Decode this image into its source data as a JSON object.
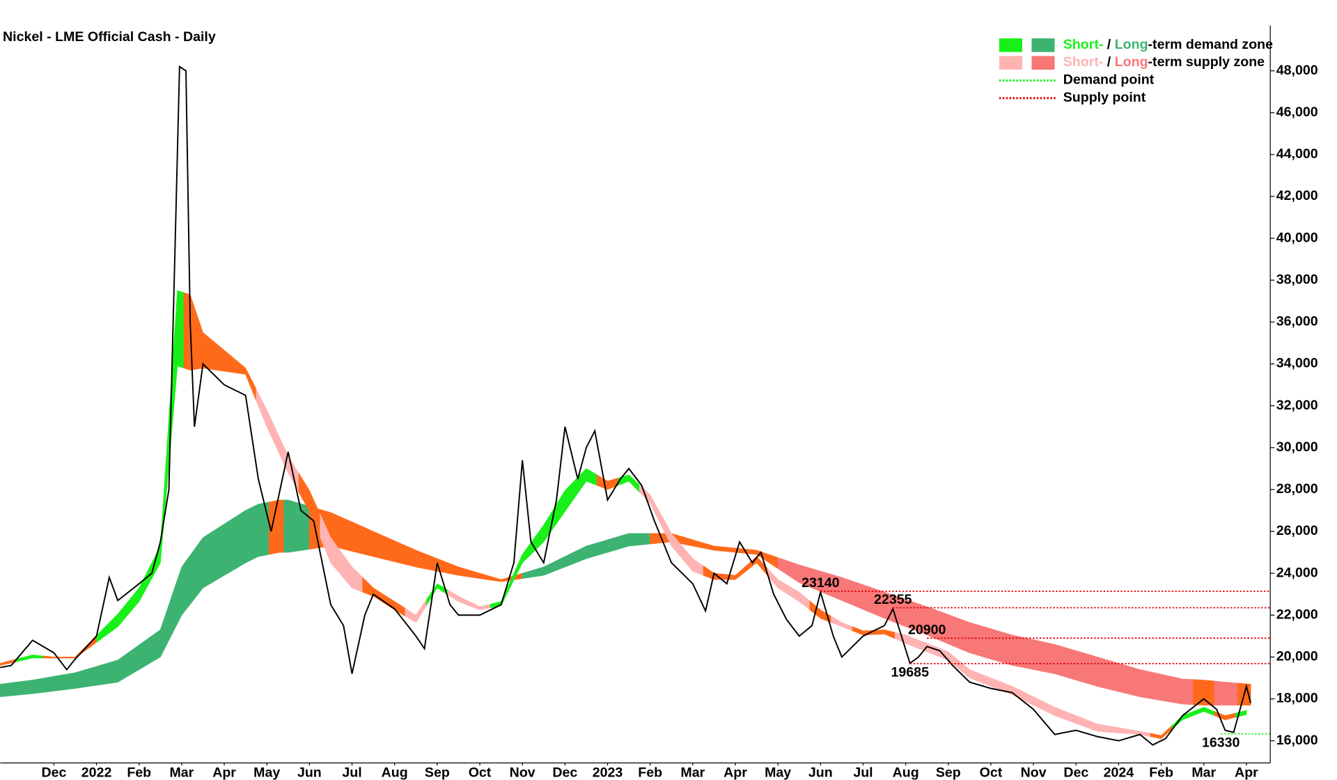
{
  "chart_data": {
    "type": "line",
    "title": "Nickel - LME Official Cash - Daily",
    "xlim": [
      0.24,
      30.06
    ],
    "ylim": [
      14940,
      50160
    ],
    "xticks": [
      {
        "value": 1.5,
        "label": "Dec"
      },
      {
        "value": 2.5,
        "label": "2022"
      },
      {
        "value": 3.5,
        "label": "Feb"
      },
      {
        "value": 4.5,
        "label": "Mar"
      },
      {
        "value": 5.5,
        "label": "Apr"
      },
      {
        "value": 6.5,
        "label": "May"
      },
      {
        "value": 7.5,
        "label": "Jun"
      },
      {
        "value": 8.5,
        "label": "Jul"
      },
      {
        "value": 9.5,
        "label": "Aug"
      },
      {
        "value": 10.5,
        "label": "Sep"
      },
      {
        "value": 11.5,
        "label": "Oct"
      },
      {
        "value": 12.5,
        "label": "Nov"
      },
      {
        "value": 13.5,
        "label": "Dec"
      },
      {
        "value": 14.5,
        "label": "2023"
      },
      {
        "value": 15.5,
        "label": "Feb"
      },
      {
        "value": 16.5,
        "label": "Mar"
      },
      {
        "value": 17.5,
        "label": "Apr"
      },
      {
        "value": 18.5,
        "label": "May"
      },
      {
        "value": 19.5,
        "label": "Jun"
      },
      {
        "value": 20.5,
        "label": "Jul"
      },
      {
        "value": 21.5,
        "label": "Aug"
      },
      {
        "value": 22.5,
        "label": "Sep"
      },
      {
        "value": 23.5,
        "label": "Oct"
      },
      {
        "value": 24.5,
        "label": "Nov"
      },
      {
        "value": 25.5,
        "label": "Dec"
      },
      {
        "value": 26.5,
        "label": "2024"
      },
      {
        "value": 27.5,
        "label": "Feb"
      },
      {
        "value": 28.5,
        "label": "Mar"
      },
      {
        "value": 29.5,
        "label": "Apr"
      }
    ],
    "yticks": [
      {
        "value": 16000,
        "label": "16,000"
      },
      {
        "value": 18000,
        "label": "18,000"
      },
      {
        "value": 20000,
        "label": "20,000"
      },
      {
        "value": 22000,
        "label": "22,000"
      },
      {
        "value": 24000,
        "label": "24,000"
      },
      {
        "value": 26000,
        "label": "26,000"
      },
      {
        "value": 28000,
        "label": "28,000"
      },
      {
        "value": 30000,
        "label": "30,000"
      },
      {
        "value": 32000,
        "label": "32,000"
      },
      {
        "value": 34000,
        "label": "34,000"
      },
      {
        "value": 36000,
        "label": "36,000"
      },
      {
        "value": 38000,
        "label": "38,000"
      },
      {
        "value": 40000,
        "label": "40,000"
      },
      {
        "value": 42000,
        "label": "42,000"
      },
      {
        "value": 44000,
        "label": "44,000"
      },
      {
        "value": 46000,
        "label": "46,000"
      },
      {
        "value": 48000,
        "label": "48,000"
      }
    ],
    "x": [
      0.24,
      0.5,
      1,
      1.5,
      1.8,
      2,
      2.5,
      2.8,
      3,
      3.5,
      3.8,
      4,
      4.2,
      4.35,
      4.45,
      4.6,
      4.7,
      4.8,
      5,
      5.5,
      6,
      6.3,
      6.6,
      7,
      7.3,
      7.6,
      8,
      8.3,
      8.5,
      8.8,
      9,
      9.5,
      10,
      10.2,
      10.5,
      10.8,
      11,
      11.5,
      12,
      12.3,
      12.5,
      12.7,
      13,
      13.3,
      13.5,
      13.8,
      14,
      14.2,
      14.5,
      14.8,
      15,
      15.3,
      15.6,
      16,
      16.5,
      16.8,
      17,
      17.3,
      17.6,
      17.9,
      18.1,
      18.4,
      18.7,
      19,
      19.3,
      19.5,
      19.8,
      20,
      20.5,
      21,
      21.2,
      21.4,
      21.6,
      21.8,
      22,
      22.3,
      22.6,
      23,
      23.5,
      24,
      24.5,
      25,
      25.5,
      26,
      26.5,
      27,
      27.3,
      27.6,
      28,
      28.5,
      28.8,
      29,
      29.2,
      29.5,
      29.6
    ],
    "series": [
      {
        "color": "#000000",
        "values": [
          19500,
          19600,
          20800,
          20200,
          19400,
          19900,
          21000,
          23800,
          22700,
          23500,
          24000,
          25500,
          28000,
          40000,
          48200,
          48000,
          36000,
          31000,
          34000,
          33000,
          32500,
          28500,
          26000,
          29800,
          27000,
          26500,
          22500,
          21500,
          19200,
          22000,
          23000,
          22300,
          21000,
          20400,
          24500,
          22500,
          22000,
          22000,
          22500,
          24500,
          29400,
          25500,
          24500,
          27500,
          31000,
          28500,
          30000,
          30800,
          27500,
          28500,
          29000,
          28200,
          26500,
          24500,
          23500,
          22200,
          24000,
          23500,
          25500,
          24500,
          25000,
          23000,
          21800,
          21000,
          21500,
          23100,
          21000,
          20000,
          21000,
          21500,
          22300,
          21000,
          19700,
          20000,
          20500,
          20300,
          19600,
          18800,
          18500,
          18300,
          17500,
          16300,
          16500,
          16200,
          16000,
          16300,
          15800,
          16100,
          17200,
          18000,
          17500,
          16500,
          16400,
          18600,
          17800
        ]
      }
    ],
    "bands": [
      {
        "x": [
          0.24,
          1,
          2,
          3,
          4,
          4.5,
          5,
          6,
          6.3,
          6.8,
          7,
          8,
          9,
          10,
          11,
          12,
          13,
          14,
          15,
          16,
          17,
          18,
          19,
          20,
          21,
          22,
          23,
          24,
          25,
          26,
          27,
          28,
          28.5,
          29,
          29.6
        ],
        "lower": [
          18100,
          18250,
          18500,
          18800,
          20000,
          22000,
          23300,
          24500,
          24800,
          25000,
          25000,
          25300,
          24800,
          24300,
          23900,
          23600,
          23900,
          24700,
          25300,
          25500,
          25100,
          24900,
          23550,
          22700,
          21850,
          21050,
          20200,
          19600,
          19200,
          18600,
          18100,
          17750,
          17700,
          17700,
          17700
        ],
        "upper": [
          18700,
          18900,
          19250,
          19850,
          21300,
          24300,
          25700,
          27000,
          27300,
          27500,
          27500,
          26900,
          26000,
          25100,
          24300,
          23700,
          24300,
          25300,
          25900,
          25900,
          25300,
          25100,
          24400,
          23800,
          23100,
          22400,
          21650,
          21050,
          20600,
          20000,
          19400,
          18950,
          18900,
          18800,
          18700
        ],
        "colors": [
          "#3cb371",
          "#3cb371",
          "#3cb371",
          "#3cb371",
          "#3cb371",
          "#3cb371",
          "#3cb371",
          "#3cb371",
          "#3cb371",
          "#ff6a1a",
          "#3cb371",
          "#ff6a1a",
          "#ff6a1a",
          "#ff6a1a",
          "#ff6a1a",
          "#ff6a1a",
          "#3cb371",
          "#3cb371",
          "#3cb371",
          "#ff6a1a",
          "#ff6a1a",
          "#ff6a1a",
          "#f87878",
          "#f87878",
          "#f87878",
          "#f87878",
          "#f87878",
          "#f87878",
          "#f87878",
          "#f87878",
          "#f87878",
          "#f87878",
          "#ff6a1a",
          "#f87878",
          "#ff6a1a"
        ]
      },
      {
        "x": [
          0.24,
          1,
          1.5,
          2,
          3,
          3.5,
          4,
          4.4,
          4.7,
          5,
          6,
          6.5,
          7,
          7.5,
          8,
          8.5,
          9,
          9.5,
          10,
          10.5,
          11,
          11.5,
          12,
          12.5,
          13,
          13.5,
          14,
          14.5,
          15,
          15.5,
          16,
          16.5,
          17,
          17.5,
          18,
          18.5,
          19,
          19.5,
          20,
          20.5,
          21,
          21.5,
          22,
          22.5,
          23,
          24,
          25,
          26,
          27,
          27.5,
          28,
          28.5,
          29,
          29.5
        ],
        "lower": [
          19600,
          19950,
          19950,
          19950,
          21450,
          22650,
          24500,
          33900,
          33700,
          33800,
          33500,
          31000,
          28800,
          26950,
          24500,
          23300,
          22900,
          22250,
          21650,
          23300,
          22650,
          22250,
          22450,
          24500,
          25500,
          26950,
          28400,
          28000,
          28400,
          27350,
          25300,
          24100,
          23700,
          23700,
          24500,
          23300,
          22650,
          21850,
          21450,
          21050,
          21100,
          20650,
          20250,
          19850,
          19000,
          18200,
          17200,
          16450,
          16300,
          16100,
          17000,
          17400,
          17000,
          17250
        ],
        "upper": [
          19700,
          20100,
          20000,
          20000,
          22050,
          23300,
          25300,
          37500,
          37300,
          35500,
          33800,
          31800,
          29600,
          27950,
          25700,
          24300,
          23300,
          22650,
          22000,
          23500,
          22900,
          22400,
          22650,
          24900,
          26300,
          27950,
          29000,
          28400,
          28700,
          27750,
          25900,
          24700,
          24000,
          23900,
          24800,
          23700,
          23100,
          22250,
          21650,
          21250,
          21300,
          21050,
          20650,
          20250,
          19400,
          18600,
          17600,
          16800,
          16450,
          16250,
          17200,
          17600,
          17200,
          17450
        ],
        "colors": [
          "#ff6a1a",
          "#19f019",
          "#ff6a1a",
          "#ff6a1a",
          "#19f019",
          "#19f019",
          "#19f019",
          "#19f019",
          "#ff6a1a",
          "#ff6a1a",
          "#ff6a1a",
          "#ffb3b3",
          "#ffb3b3",
          "#ff6a1a",
          "#ffb3b3",
          "#ffb3b3",
          "#ff6a1a",
          "#ff6a1a",
          "#ffb3b3",
          "#19f019",
          "#ffb3b3",
          "#ffb3b3",
          "#19f019",
          "#19f019",
          "#19f019",
          "#19f019",
          "#19f019",
          "#ff6a1a",
          "#19f019",
          "#ffb3b3",
          "#ffb3b3",
          "#ffb3b3",
          "#ff6a1a",
          "#ff6a1a",
          "#ff6a1a",
          "#ffb3b3",
          "#ffb3b3",
          "#ff6a1a",
          "#ffb3b3",
          "#ff6a1a",
          "#ff6a1a",
          "#ffb3b3",
          "#ffb3b3",
          "#ffb3b3",
          "#ffb3b3",
          "#ffb3b3",
          "#ffb3b3",
          "#ffb3b3",
          "#ffb3b3",
          "#ff6a1a",
          "#19f019",
          "#19f019",
          "#ff6a1a",
          "#19f019"
        ]
      }
    ],
    "levels": [
      {
        "value": 23140,
        "x": 19.5,
        "color": "#e00000",
        "label_side": "above"
      },
      {
        "value": 22355,
        "x": 21.2,
        "color": "#e00000",
        "label_side": "above"
      },
      {
        "value": 20900,
        "x": 22.0,
        "color": "#e00000",
        "label_side": "above"
      },
      {
        "value": 19685,
        "x": 21.6,
        "color": "#e00000",
        "label_side": "below"
      },
      {
        "value": 16330,
        "x": 28.9,
        "color": "#19f019",
        "label_side": "below"
      }
    ],
    "legend": [
      {
        "swatches": [
          "#19f019",
          "#3cb371"
        ],
        "parts": [
          {
            "text": "Short-",
            "color": "#19f019"
          },
          {
            "text": " / ",
            "color": "#000000"
          },
          {
            "text": "Long",
            "color": "#3cb371"
          },
          {
            "text": "-term demand zone",
            "color": "#000000"
          }
        ]
      },
      {
        "swatches": [
          "#ffb3b3",
          "#f87878"
        ],
        "parts": [
          {
            "text": "Short-",
            "color": "#ffb3b3"
          },
          {
            "text": " / ",
            "color": "#000000"
          },
          {
            "text": "Long",
            "color": "#f87878"
          },
          {
            "text": "-term supply zone",
            "color": "#000000"
          }
        ]
      },
      {
        "line": "#19f019",
        "parts": [
          {
            "text": "Demand point",
            "color": "#000000"
          }
        ]
      },
      {
        "line": "#e00000",
        "parts": [
          {
            "text": "Supply point",
            "color": "#000000"
          }
        ]
      }
    ]
  }
}
